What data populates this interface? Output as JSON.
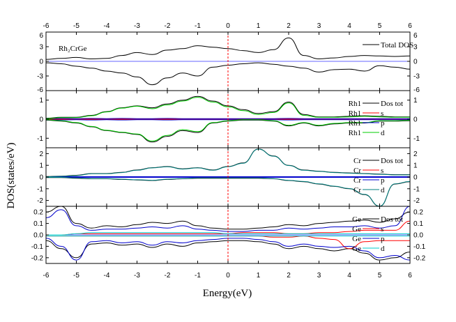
{
  "chart_data": {
    "type": "line",
    "xlabel": "Energy(eV)",
    "ylabel": "DOS(states/eV)",
    "xlim": [
      -6,
      6
    ],
    "x_ticks": [
      "-6",
      "-5",
      "-4",
      "-3",
      "-2",
      "-1",
      "0",
      "1",
      "2",
      "3",
      "4",
      "5",
      "6"
    ],
    "fermi_level": 0,
    "grid": false,
    "panels": [
      {
        "id": "total",
        "annotation": "Rh₂CrGe",
        "ylim": [
          -6,
          6
        ],
        "y_ticks": [
          "6",
          "3",
          "0",
          "-3",
          "-6"
        ],
        "legend": [
          {
            "atom": "",
            "label": "Total DOS",
            "color": "#000000"
          }
        ],
        "legend_position": "top-right",
        "series": [
          {
            "name": "Total DOS",
            "color": "#000000",
            "sample_every": 0.5,
            "x_start": -6,
            "up": [
              0.4,
              0.6,
              0.8,
              0.5,
              0.6,
              1.2,
              1.8,
              1.4,
              2.3,
              2.6,
              3.2,
              2.9,
              2.6,
              2.2,
              1.8,
              2.4,
              4.8,
              1.2,
              0.5,
              0.7,
              1.0,
              1.2,
              1.1,
              1.0,
              1.1
            ],
            "down": [
              -0.3,
              -0.5,
              -1.0,
              -1.4,
              -2.0,
              -2.4,
              -3.2,
              -4.8,
              -3.4,
              -2.4,
              -3.0,
              -1.2,
              -0.8,
              -0.5,
              -0.3,
              -0.6,
              -1.0,
              -1.4,
              -2.2,
              -1.7,
              -1.6,
              -2.0,
              -0.9,
              -1.2,
              -1.6
            ]
          }
        ]
      },
      {
        "id": "rh",
        "ylim": [
          -1.5,
          1.5
        ],
        "y_ticks": [
          "1",
          "0",
          "-1"
        ],
        "legend": [
          {
            "atom": "Rh1",
            "label": "Dos tot",
            "color": "#000000"
          },
          {
            "atom": "Rh1",
            "label": "s",
            "color": "#ff0000"
          },
          {
            "atom": "Rh1",
            "label": "p",
            "color": "#0000cc"
          },
          {
            "atom": "Rh1",
            "label": "d",
            "color": "#00cc00"
          }
        ],
        "legend_position": "top-right",
        "series": [
          {
            "name": "Dos tot",
            "color": "#000000",
            "sample_every": 0.5,
            "x_start": -6,
            "up": [
              0.05,
              0.1,
              0.1,
              0.2,
              0.4,
              0.6,
              0.7,
              0.6,
              0.8,
              1.0,
              1.2,
              0.95,
              0.7,
              0.5,
              0.3,
              0.4,
              0.9,
              0.25,
              0.12,
              0.12,
              0.15,
              0.18,
              0.15,
              0.12,
              0.12
            ],
            "down": [
              -0.05,
              -0.1,
              -0.2,
              -0.4,
              -0.6,
              -0.7,
              -0.8,
              -1.2,
              -0.9,
              -0.6,
              -0.7,
              -0.2,
              -0.1,
              -0.05,
              -0.05,
              -0.1,
              -0.35,
              -0.2,
              -0.35,
              -0.25,
              -0.2,
              -0.2,
              -0.1,
              -0.1,
              -0.08
            ]
          },
          {
            "name": "s",
            "color": "#ff0000",
            "sample_every": 0.5,
            "x_start": -6,
            "up": [
              0.02,
              0.02,
              0.02,
              0.02,
              0.02,
              0.02,
              0.02,
              0.02,
              0.02,
              0.02,
              0.02,
              0.02,
              0.02,
              0.02,
              0.02,
              0.02,
              0.02,
              0.02,
              0.02,
              0.02,
              0.02,
              0.02,
              0.02,
              0.02,
              0.02
            ],
            "down": [
              -0.02,
              -0.02,
              -0.02,
              -0.02,
              -0.02,
              -0.02,
              -0.02,
              -0.02,
              -0.02,
              -0.02,
              -0.02,
              -0.02,
              -0.02,
              -0.02,
              -0.02,
              -0.02,
              -0.02,
              -0.02,
              -0.02,
              -0.02,
              -0.02,
              -0.02,
              -0.02,
              -0.02,
              -0.02
            ]
          },
          {
            "name": "p",
            "color": "#0000cc",
            "sample_every": 0.5,
            "x_start": -6,
            "up": [
              0.03,
              0.04,
              0.03,
              0.04,
              0.03,
              0.04,
              0.03,
              0.03,
              0.04,
              0.03,
              0.03,
              0.03,
              0.03,
              0.03,
              0.03,
              0.03,
              0.04,
              0.03,
              0.03,
              0.03,
              0.03,
              0.03,
              0.03,
              0.03,
              0.03
            ],
            "down": [
              -0.03,
              -0.04,
              -0.03,
              -0.04,
              -0.03,
              -0.04,
              -0.03,
              -0.03,
              -0.04,
              -0.03,
              -0.03,
              -0.03,
              -0.03,
              -0.03,
              -0.03,
              -0.03,
              -0.04,
              -0.03,
              -0.03,
              -0.03,
              -0.03,
              -0.03,
              -0.03,
              -0.03,
              -0.03
            ]
          },
          {
            "name": "d",
            "color": "#00cc00",
            "sample_every": 0.5,
            "x_start": -6,
            "up": [
              0.03,
              0.08,
              0.08,
              0.18,
              0.38,
              0.58,
              0.68,
              0.55,
              0.75,
              0.95,
              1.15,
              0.9,
              0.65,
              0.45,
              0.25,
              0.35,
              0.85,
              0.2,
              0.1,
              0.1,
              0.12,
              0.15,
              0.12,
              0.1,
              0.1
            ],
            "down": [
              -0.03,
              -0.08,
              -0.18,
              -0.38,
              -0.58,
              -0.68,
              -0.78,
              -1.15,
              -0.85,
              -0.55,
              -0.65,
              -0.18,
              -0.08,
              -0.03,
              -0.03,
              -0.08,
              -0.32,
              -0.18,
              -0.32,
              -0.22,
              -0.18,
              -0.18,
              -0.08,
              -0.08,
              -0.06
            ]
          }
        ]
      },
      {
        "id": "cr",
        "ylim": [
          -2.5,
          2.5
        ],
        "y_ticks": [
          "2",
          "1",
          "0",
          "-1",
          "-2"
        ],
        "legend": [
          {
            "atom": "Cr",
            "label": "Dos tot",
            "color": "#000000"
          },
          {
            "atom": "Cr",
            "label": "s",
            "color": "#ff0000"
          },
          {
            "atom": "Cr",
            "label": "p",
            "color": "#0000cc"
          },
          {
            "atom": "Cr",
            "label": "d",
            "color": "#008080"
          }
        ],
        "legend_position": "top-right",
        "series": [
          {
            "name": "Dos tot",
            "color": "#000000",
            "sample_every": 0.5,
            "x_start": -6,
            "up": [
              0.05,
              0.08,
              0.15,
              0.3,
              0.3,
              0.4,
              0.6,
              0.8,
              0.9,
              0.7,
              0.8,
              0.6,
              0.9,
              1.2,
              2.4,
              1.8,
              1.0,
              0.6,
              0.5,
              0.4,
              0.35,
              0.3,
              0.25,
              0.2,
              0.2
            ],
            "down": [
              -0.05,
              -0.05,
              -0.1,
              -0.15,
              -0.15,
              -0.2,
              -0.25,
              -0.3,
              -0.2,
              -0.15,
              -0.1,
              -0.1,
              -0.1,
              -0.1,
              -0.1,
              -0.15,
              -0.3,
              -0.4,
              -0.6,
              -0.8,
              -1.0,
              -1.5,
              -2.5,
              -0.6,
              -0.4
            ]
          },
          {
            "name": "s",
            "color": "#ff0000",
            "sample_every": 0.5,
            "x_start": -6,
            "up": [
              0.02,
              0.02,
              0.02,
              0.02,
              0.02,
              0.02,
              0.02,
              0.02,
              0.02,
              0.02,
              0.02,
              0.02,
              0.02,
              0.02,
              0.02,
              0.02,
              0.02,
              0.02,
              0.02,
              0.02,
              0.02,
              0.02,
              0.02,
              0.02,
              0.02
            ],
            "down": [
              -0.02,
              -0.02,
              -0.02,
              -0.02,
              -0.02,
              -0.02,
              -0.02,
              -0.02,
              -0.02,
              -0.02,
              -0.02,
              -0.02,
              -0.02,
              -0.02,
              -0.02,
              -0.02,
              -0.02,
              -0.02,
              -0.02,
              -0.02,
              -0.02,
              -0.02,
              -0.02,
              -0.02,
              -0.02
            ]
          },
          {
            "name": "p",
            "color": "#0000cc",
            "sample_every": 0.5,
            "x_start": -6,
            "up": [
              0.03,
              0.03,
              0.03,
              0.03,
              0.03,
              0.03,
              0.03,
              0.03,
              0.03,
              0.03,
              0.03,
              0.03,
              0.03,
              0.03,
              0.03,
              0.03,
              0.03,
              0.03,
              0.03,
              0.03,
              0.03,
              0.03,
              0.03,
              0.03,
              0.03
            ],
            "down": [
              -0.03,
              -0.03,
              -0.03,
              -0.03,
              -0.03,
              -0.03,
              -0.03,
              -0.03,
              -0.03,
              -0.03,
              -0.03,
              -0.03,
              -0.03,
              -0.03,
              -0.03,
              -0.03,
              -0.03,
              -0.03,
              -0.03,
              -0.03,
              -0.03,
              -0.03,
              -0.03,
              -0.03,
              -0.03
            ]
          },
          {
            "name": "d",
            "color": "#008080",
            "sample_every": 0.5,
            "x_start": -6,
            "up": [
              0.03,
              0.06,
              0.12,
              0.28,
              0.28,
              0.38,
              0.58,
              0.78,
              0.88,
              0.68,
              0.78,
              0.58,
              0.88,
              1.18,
              2.38,
              1.78,
              0.98,
              0.58,
              0.48,
              0.38,
              0.33,
              0.28,
              0.23,
              0.18,
              0.18
            ],
            "down": [
              -0.03,
              -0.03,
              -0.08,
              -0.13,
              -0.13,
              -0.18,
              -0.23,
              -0.28,
              -0.18,
              -0.13,
              -0.08,
              -0.08,
              -0.08,
              -0.08,
              -0.08,
              -0.13,
              -0.28,
              -0.38,
              -0.58,
              -0.78,
              -0.98,
              -1.48,
              -2.48,
              -0.58,
              -0.38
            ]
          }
        ]
      },
      {
        "id": "ge",
        "ylim": [
          -0.25,
          0.25
        ],
        "y_ticks": [
          "0.2",
          "0.1",
          "0.0",
          "-0.1",
          "-0.2"
        ],
        "legend": [
          {
            "atom": "Ge",
            "label": "Dos tot",
            "color": "#000000"
          },
          {
            "atom": "Ge",
            "label": "s",
            "color": "#ff0000"
          },
          {
            "atom": "Ge",
            "label": "p",
            "color": "#0000cc"
          },
          {
            "atom": "Ge",
            "label": "d",
            "color": "#00cccc"
          }
        ],
        "legend_position": "top-right",
        "series": [
          {
            "name": "Dos tot",
            "color": "#000000",
            "sample_every": 0.5,
            "x_start": -6,
            "up": [
              0.2,
              0.25,
              0.1,
              0.06,
              0.08,
              0.07,
              0.09,
              0.11,
              0.1,
              0.12,
              0.08,
              0.06,
              0.05,
              0.05,
              0.06,
              0.07,
              0.09,
              0.08,
              0.1,
              0.11,
              0.12,
              0.13,
              0.11,
              0.14,
              0.2
            ],
            "down": [
              -0.05,
              -0.12,
              -0.2,
              -0.08,
              -0.07,
              -0.09,
              -0.08,
              -0.11,
              -0.08,
              -0.1,
              -0.07,
              -0.06,
              -0.05,
              -0.05,
              -0.06,
              -0.08,
              -0.12,
              -0.1,
              -0.12,
              -0.14,
              -0.12,
              -0.16,
              -0.22,
              -0.2,
              -0.15
            ]
          },
          {
            "name": "s",
            "color": "#ff0000",
            "sample_every": 0.5,
            "x_start": -6,
            "up": [
              0.0,
              0.0,
              0.01,
              0.01,
              0.01,
              0.01,
              0.01,
              0.01,
              0.01,
              0.01,
              0.01,
              0.01,
              0.01,
              0.02,
              0.02,
              0.02,
              0.01,
              0.01,
              0.02,
              0.02,
              0.03,
              0.04,
              0.04,
              0.04,
              0.12
            ],
            "down": [
              -0.01,
              -0.01,
              -0.01,
              -0.01,
              -0.01,
              -0.01,
              -0.01,
              -0.01,
              -0.01,
              -0.01,
              -0.01,
              -0.01,
              -0.01,
              -0.01,
              -0.01,
              -0.02,
              -0.02,
              -0.01,
              -0.03,
              -0.04,
              -0.12,
              -0.06,
              -0.05,
              -0.05,
              -0.05
            ]
          },
          {
            "name": "p",
            "color": "#0000cc",
            "sample_every": 0.5,
            "x_start": -6,
            "up": [
              0.15,
              0.22,
              0.08,
              0.04,
              0.05,
              0.05,
              0.06,
              0.07,
              0.06,
              0.08,
              0.05,
              0.04,
              0.03,
              0.03,
              0.04,
              0.04,
              0.06,
              0.05,
              0.06,
              0.07,
              0.07,
              0.08,
              0.06,
              0.08,
              0.25
            ],
            "down": [
              -0.03,
              -0.1,
              -0.22,
              -0.06,
              -0.05,
              -0.07,
              -0.06,
              -0.09,
              -0.06,
              -0.07,
              -0.05,
              -0.04,
              -0.03,
              -0.03,
              -0.04,
              -0.06,
              -0.1,
              -0.08,
              -0.1,
              -0.11,
              -0.1,
              -0.14,
              -0.2,
              -0.18,
              -0.22
            ]
          },
          {
            "name": "d",
            "color": "#00cccc",
            "sample_every": 0.5,
            "x_start": -6,
            "up": [
              0.0,
              0.0,
              0.01,
              0.02,
              0.02,
              0.02,
              0.02,
              0.02,
              0.02,
              0.02,
              0.02,
              0.02,
              0.01,
              0.01,
              0.01,
              0.01,
              0.01,
              0.01,
              0.01,
              0.01,
              0.01,
              0.01,
              0.01,
              0.01,
              0.01
            ],
            "down": [
              -0.01,
              -0.01,
              -0.01,
              -0.01,
              -0.01,
              -0.01,
              -0.01,
              -0.01,
              -0.01,
              -0.01,
              -0.01,
              -0.01,
              -0.01,
              -0.01,
              -0.01,
              -0.01,
              -0.01,
              -0.01,
              -0.01,
              -0.01,
              -0.01,
              -0.01,
              -0.01,
              -0.01,
              -0.01
            ]
          }
        ]
      }
    ]
  }
}
